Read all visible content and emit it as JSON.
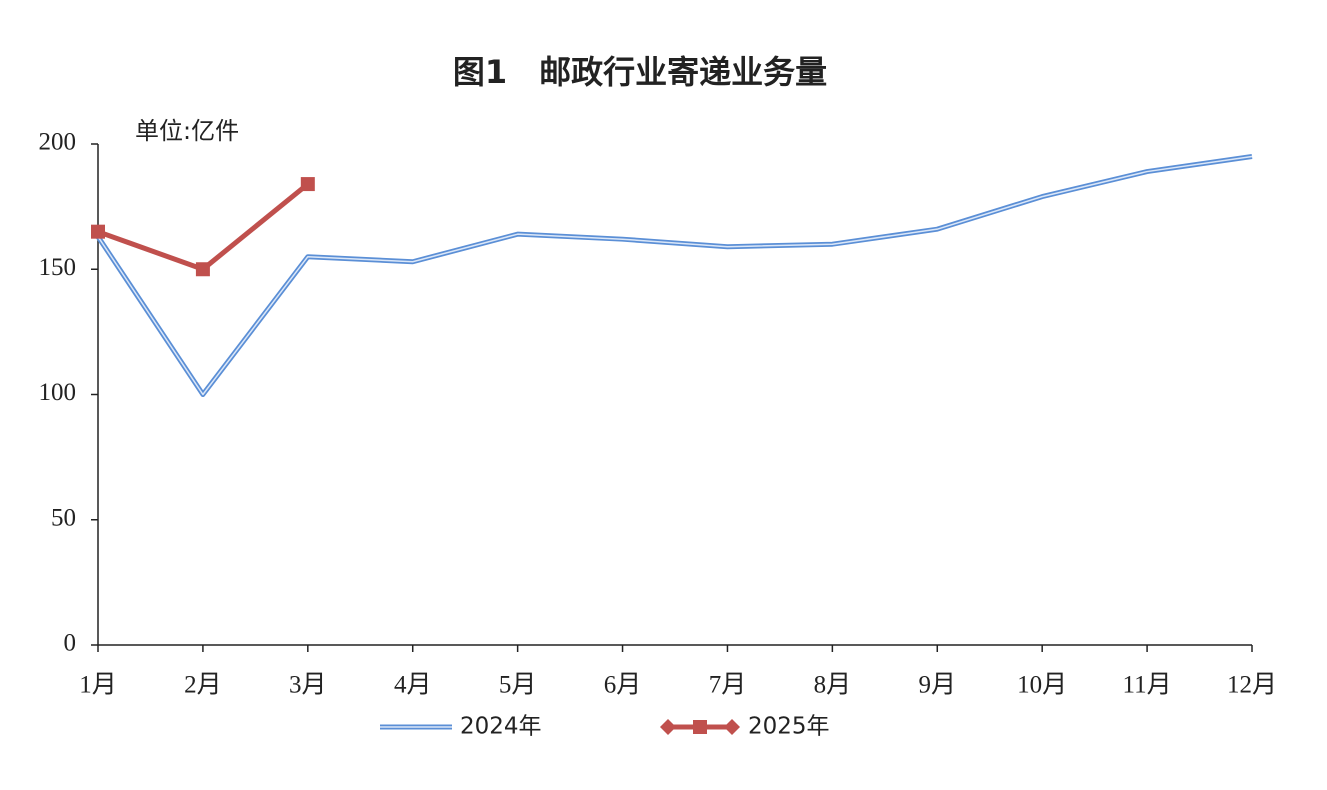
{
  "chart_data": {
    "type": "line",
    "title": "图1　邮政行业寄递业务量",
    "unit_label": "单位:亿件",
    "categories": [
      "1月",
      "2月",
      "3月",
      "4月",
      "5月",
      "6月",
      "7月",
      "8月",
      "9月",
      "10月",
      "11月",
      "12月"
    ],
    "series": [
      {
        "name": "2024年",
        "color": "#5b8fd6",
        "values": [
          163,
          100,
          155,
          153,
          164,
          162,
          159,
          160,
          166,
          179,
          189,
          195
        ]
      },
      {
        "name": "2025年",
        "color": "#c0504d",
        "values": [
          165,
          150,
          184,
          null,
          null,
          null,
          null,
          null,
          null,
          null,
          null,
          null
        ]
      }
    ],
    "ylim": [
      0,
      200
    ],
    "yticks": [
      0,
      50,
      100,
      150,
      200
    ],
    "grid": false
  }
}
